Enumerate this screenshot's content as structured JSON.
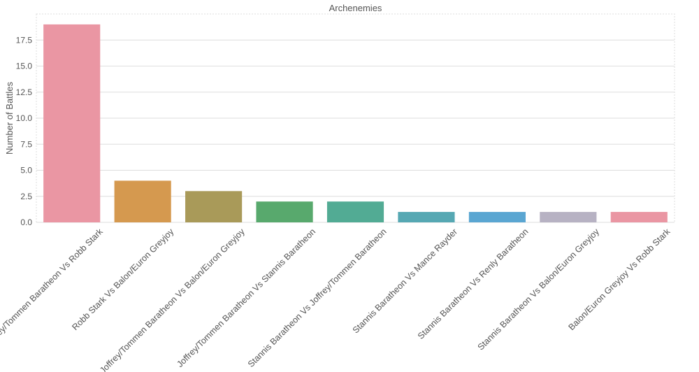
{
  "chart_data": {
    "type": "bar",
    "title": "Archenemies",
    "xlabel": "",
    "ylabel": "Number of Battles",
    "categories": [
      "Joffrey/Tommen Baratheon Vs Robb Stark",
      "Robb Stark Vs Balon/Euron Greyjoy",
      "Joffrey/Tommen Baratheon Vs Balon/Euron Greyjoy",
      "Joffrey/Tommen Baratheon Vs Stannis Baratheon",
      "Stannis Baratheon Vs Joffrey/Tommen Baratheon",
      "Stannis Baratheon Vs Mance Rayder",
      "Stannis Baratheon Vs Renly Baratheon",
      "Stannis Baratheon Vs Balon/Euron Greyjoy",
      "Balon/Euron Greyjoy Vs Robb Stark"
    ],
    "values": [
      19,
      4,
      3,
      2,
      2,
      1,
      1,
      1,
      1
    ],
    "colors": [
      "#ea96a3",
      "#d5994f",
      "#a99a59",
      "#58a96d",
      "#52ab94",
      "#56a8b3",
      "#5aa6d2",
      "#b7b2c3",
      "#ea96a3"
    ],
    "ylim": [
      0,
      20
    ],
    "yticks": [
      "0.0",
      "2.5",
      "5.0",
      "7.5",
      "10.0",
      "12.5",
      "15.0",
      "17.5"
    ],
    "grid": true,
    "legend": "none"
  }
}
